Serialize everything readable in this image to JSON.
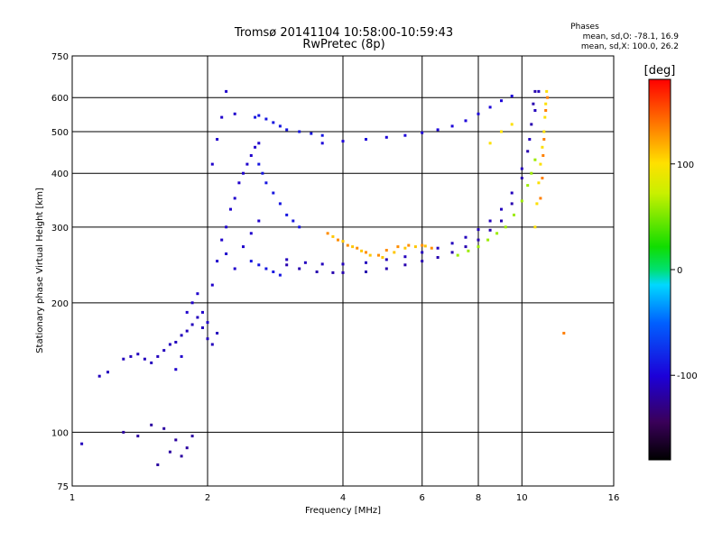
{
  "header": {
    "title": "Tromsø 20141104 10:58:00-10:59:43",
    "subtitle": "RwPretec (8p)",
    "stats_title": "Phases",
    "stats_line1": "mean, sd,O: -78.1, 16.9",
    "stats_line2": "mean, sd,X: 100.0, 26.2"
  },
  "chart_data": {
    "type": "scatter",
    "xlabel": "Frequency [MHz]",
    "ylabel": "Stationary phase Virtual Height [km]",
    "x_scale": "log",
    "y_scale": "log",
    "xlim": [
      1,
      16
    ],
    "ylim": [
      75,
      750
    ],
    "x_ticks": [
      1,
      2,
      4,
      6,
      8,
      10,
      16
    ],
    "y_ticks": [
      75,
      100,
      200,
      300,
      400,
      500,
      600,
      750
    ],
    "grid": true,
    "colorbar": {
      "label": "[deg]",
      "range": [
        -180,
        180
      ],
      "ticks": [
        100,
        0,
        -100
      ]
    },
    "series": [
      {
        "phase": -110,
        "points": [
          [
            1.05,
            94
          ],
          [
            1.15,
            135
          ],
          [
            1.2,
            138
          ],
          [
            1.3,
            148
          ],
          [
            1.35,
            150
          ],
          [
            1.4,
            152
          ],
          [
            1.45,
            148
          ],
          [
            1.5,
            145
          ],
          [
            1.55,
            150
          ],
          [
            1.6,
            155
          ],
          [
            1.65,
            160
          ],
          [
            1.7,
            162
          ],
          [
            1.75,
            168
          ],
          [
            1.8,
            172
          ],
          [
            1.85,
            178
          ],
          [
            1.9,
            185
          ],
          [
            1.95,
            175
          ],
          [
            2.0,
            165
          ],
          [
            2.05,
            160
          ],
          [
            2.1,
            170
          ]
        ]
      },
      {
        "phase": -120,
        "points": [
          [
            1.3,
            100
          ],
          [
            1.4,
            98
          ],
          [
            1.5,
            104
          ],
          [
            1.6,
            102
          ],
          [
            1.7,
            96
          ],
          [
            1.8,
            92
          ],
          [
            1.65,
            90
          ],
          [
            1.55,
            84
          ],
          [
            1.75,
            88
          ],
          [
            1.85,
            98
          ]
        ]
      },
      {
        "phase": -105,
        "points": [
          [
            1.7,
            140
          ],
          [
            1.75,
            150
          ],
          [
            1.8,
            190
          ],
          [
            1.85,
            200
          ],
          [
            1.9,
            210
          ],
          [
            1.95,
            190
          ],
          [
            2.0,
            180
          ],
          [
            2.05,
            220
          ],
          [
            2.1,
            250
          ],
          [
            2.15,
            280
          ],
          [
            2.2,
            300
          ],
          [
            2.25,
            330
          ],
          [
            2.3,
            350
          ],
          [
            2.35,
            380
          ],
          [
            2.4,
            400
          ],
          [
            2.45,
            420
          ],
          [
            2.5,
            440
          ],
          [
            2.55,
            460
          ],
          [
            2.6,
            470
          ],
          [
            2.05,
            420
          ],
          [
            2.1,
            480
          ],
          [
            2.15,
            540
          ],
          [
            2.2,
            620
          ],
          [
            2.3,
            550
          ],
          [
            2.2,
            260
          ],
          [
            2.3,
            240
          ],
          [
            2.4,
            270
          ],
          [
            2.5,
            290
          ],
          [
            2.6,
            310
          ]
        ]
      },
      {
        "phase": -90,
        "points": [
          [
            2.55,
            540
          ],
          [
            2.6,
            545
          ],
          [
            2.7,
            535
          ],
          [
            2.8,
            525
          ],
          [
            2.9,
            515
          ],
          [
            3.0,
            505
          ],
          [
            3.2,
            500
          ],
          [
            3.4,
            495
          ],
          [
            3.6,
            490
          ],
          [
            2.6,
            420
          ],
          [
            2.65,
            400
          ],
          [
            2.7,
            380
          ],
          [
            2.8,
            360
          ],
          [
            2.9,
            340
          ],
          [
            3.0,
            320
          ],
          [
            3.1,
            310
          ],
          [
            3.2,
            300
          ],
          [
            2.5,
            250
          ],
          [
            2.6,
            245
          ],
          [
            2.7,
            240
          ],
          [
            2.8,
            236
          ],
          [
            2.9,
            232
          ]
        ]
      },
      {
        "phase": -115,
        "points": [
          [
            3.0,
            245
          ],
          [
            3.2,
            240
          ],
          [
            3.5,
            236
          ],
          [
            3.8,
            235
          ],
          [
            4.0,
            235
          ],
          [
            4.5,
            236
          ],
          [
            5.0,
            240
          ],
          [
            5.5,
            245
          ],
          [
            6.0,
            250
          ],
          [
            6.5,
            255
          ],
          [
            7.0,
            262
          ],
          [
            7.5,
            270
          ],
          [
            8.0,
            280
          ],
          [
            8.5,
            295
          ],
          [
            9.0,
            310
          ],
          [
            9.5,
            340
          ],
          [
            10.0,
            390
          ],
          [
            10.3,
            450
          ],
          [
            10.5,
            520
          ],
          [
            10.6,
            580
          ],
          [
            10.7,
            620
          ]
        ]
      },
      {
        "phase": -110,
        "points": [
          [
            3.0,
            252
          ],
          [
            3.3,
            248
          ],
          [
            3.6,
            246
          ],
          [
            4.0,
            246
          ],
          [
            4.5,
            248
          ],
          [
            5.0,
            252
          ],
          [
            5.5,
            256
          ],
          [
            6.0,
            262
          ],
          [
            6.5,
            268
          ],
          [
            7.0,
            275
          ],
          [
            7.5,
            284
          ],
          [
            8.0,
            296
          ],
          [
            8.5,
            310
          ],
          [
            9.0,
            330
          ],
          [
            9.5,
            360
          ],
          [
            10.0,
            410
          ],
          [
            10.4,
            480
          ],
          [
            10.7,
            560
          ],
          [
            10.9,
            620
          ]
        ]
      },
      {
        "phase": -100,
        "points": [
          [
            3.6,
            470
          ],
          [
            4.0,
            475
          ],
          [
            4.5,
            480
          ],
          [
            5.0,
            485
          ],
          [
            5.5,
            490
          ],
          [
            6.0,
            497
          ],
          [
            6.5,
            505
          ],
          [
            7.0,
            515
          ],
          [
            7.5,
            530
          ],
          [
            8.0,
            550
          ],
          [
            8.5,
            570
          ],
          [
            9.0,
            590
          ],
          [
            9.5,
            605
          ]
        ]
      },
      {
        "phase": 130,
        "points": [
          [
            3.7,
            290
          ],
          [
            3.9,
            280
          ],
          [
            4.1,
            272
          ],
          [
            4.3,
            268
          ],
          [
            4.5,
            262
          ],
          [
            4.8,
            258
          ],
          [
            5.0,
            265
          ],
          [
            5.3,
            270
          ],
          [
            5.6,
            272
          ],
          [
            6.0,
            272
          ],
          [
            6.3,
            268
          ]
        ]
      },
      {
        "phase": 110,
        "points": [
          [
            3.8,
            285
          ],
          [
            4.0,
            278
          ],
          [
            4.2,
            270
          ],
          [
            4.4,
            264
          ],
          [
            4.6,
            258
          ],
          [
            4.9,
            255
          ],
          [
            5.2,
            262
          ],
          [
            5.5,
            268
          ],
          [
            5.8,
            270
          ],
          [
            6.1,
            271
          ]
        ]
      },
      {
        "phase": 60,
        "points": [
          [
            7.2,
            258
          ],
          [
            7.6,
            264
          ],
          [
            8.0,
            270
          ],
          [
            8.4,
            280
          ],
          [
            8.8,
            290
          ],
          [
            9.2,
            300
          ],
          [
            9.6,
            320
          ],
          [
            10.0,
            345
          ],
          [
            10.3,
            375
          ],
          [
            10.5,
            400
          ],
          [
            10.7,
            430
          ]
        ]
      },
      {
        "phase": 100,
        "points": [
          [
            8.5,
            470
          ],
          [
            9.0,
            500
          ],
          [
            9.5,
            520
          ],
          [
            10.7,
            300
          ],
          [
            10.8,
            340
          ],
          [
            10.9,
            380
          ],
          [
            11.0,
            420
          ],
          [
            11.1,
            460
          ],
          [
            11.2,
            500
          ],
          [
            11.25,
            540
          ],
          [
            11.3,
            580
          ],
          [
            11.35,
            620
          ]
        ]
      },
      {
        "phase": 135,
        "points": [
          [
            11.0,
            350
          ],
          [
            11.1,
            390
          ],
          [
            11.15,
            440
          ],
          [
            11.2,
            480
          ],
          [
            11.3,
            560
          ],
          [
            11.4,
            600
          ],
          [
            12.4,
            170
          ]
        ]
      }
    ]
  }
}
